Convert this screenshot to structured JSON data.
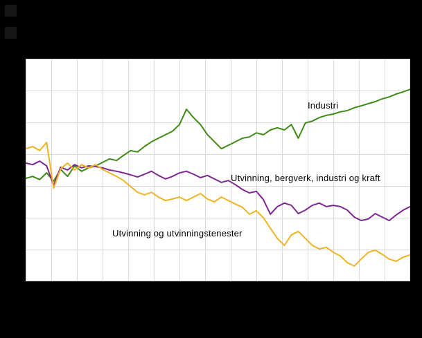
{
  "canvas": {
    "background": "#000000",
    "plot_background": "#ffffff",
    "grid_color": "#d9d9d9"
  },
  "chart_data": {
    "type": "line",
    "title": "",
    "xlabel": "",
    "ylabel": "",
    "x_tick_labels_visible": false,
    "y_tick_labels_visible": false,
    "ylim": [
      55,
      125
    ],
    "grid": {
      "on": true,
      "vertical_divisions": 15,
      "horizontal_divisions": 7
    },
    "legend_position": "inline-annotations",
    "series": [
      {
        "name": "Industri",
        "color": "#3e8a16",
        "values": [
          87.4,
          88,
          87,
          89.1,
          86.5,
          90.2,
          88,
          91.3,
          89.6,
          90.7,
          91.3,
          92.4,
          93.5,
          93,
          94.6,
          96.1,
          95.7,
          97.4,
          98.9,
          100,
          101.1,
          102.2,
          104.3,
          109.1,
          106.5,
          104.3,
          101.1,
          98.9,
          96.7,
          97.8,
          98.9,
          100,
          100.4,
          101.7,
          101.1,
          102.6,
          103.3,
          102.6,
          104.3,
          100,
          104.8,
          105.4,
          106.5,
          107.2,
          107.6,
          108.3,
          108.7,
          109.6,
          110.2,
          110.9,
          111.5,
          112.4,
          113,
          113.9,
          114.6,
          115.4
        ]
      },
      {
        "name": "Utvinning, bergverk, industri og kraft",
        "color": "#7d2592",
        "values": [
          92.2,
          91.7,
          92.8,
          91.3,
          85.2,
          90.9,
          90,
          91.7,
          90.7,
          91.3,
          91.1,
          90.7,
          90,
          89.6,
          89.1,
          88.5,
          87.8,
          88.7,
          89.6,
          88.3,
          87.2,
          88,
          89.1,
          89.6,
          88.7,
          87.6,
          88.3,
          87.2,
          86.1,
          86.7,
          85.4,
          83.9,
          82.8,
          83.3,
          80.7,
          76.1,
          78.5,
          79.6,
          78.9,
          76.3,
          77.4,
          78.9,
          79.6,
          78.5,
          78.9,
          78.5,
          77.4,
          75.2,
          74.1,
          74.6,
          76.3,
          75.2,
          74.1,
          75.9,
          77.4,
          78.5
        ]
      },
      {
        "name": "Utvinning og utvinningstenester",
        "color": "#f0b323",
        "values": [
          96.7,
          97.4,
          96.1,
          98.7,
          84.3,
          90.4,
          92.2,
          90,
          91.7,
          90.7,
          91.7,
          90.2,
          89.1,
          88,
          86.7,
          84.8,
          83,
          82.2,
          83,
          81.5,
          80.4,
          80.9,
          81.5,
          80.4,
          81.5,
          82.6,
          80.9,
          80,
          81.5,
          80.4,
          79.3,
          78.3,
          76.1,
          77.2,
          75,
          71.7,
          68.5,
          66.3,
          69.6,
          70.7,
          68.5,
          66.3,
          65.2,
          65.7,
          64.1,
          63,
          60.9,
          59.8,
          62,
          64.1,
          64.8,
          63.5,
          62,
          61.3,
          62.6,
          63.3
        ]
      }
    ],
    "annotations": [
      {
        "text": "Industri"
      },
      {
        "text": "Utvinning, bergverk, industri og kraft"
      },
      {
        "text": "Utvinning og utvinningstenester"
      }
    ]
  }
}
